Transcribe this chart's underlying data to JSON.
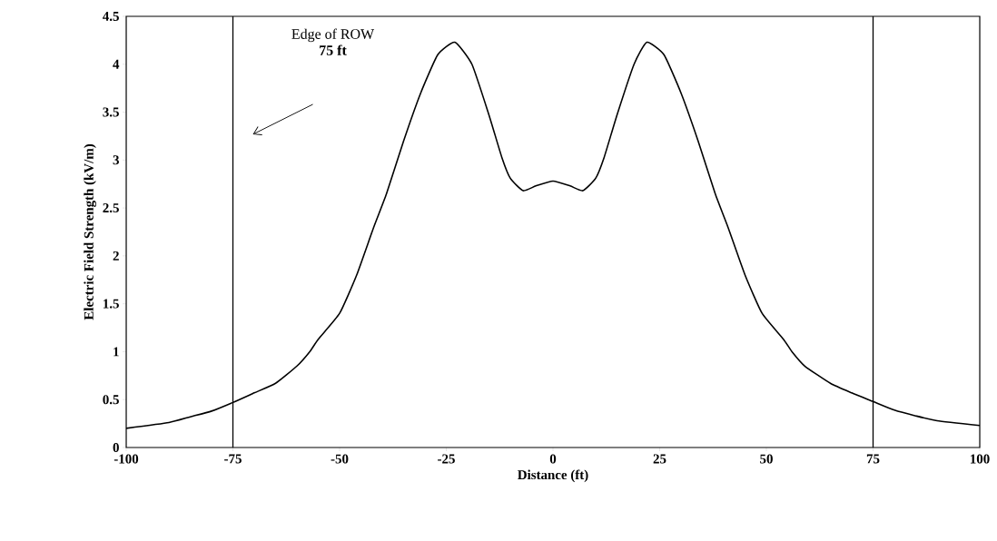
{
  "chart_data": {
    "type": "line",
    "xlabel": "Distance (ft)",
    "ylabel": "Electric Field Strength (kV/m)",
    "x": [
      -100,
      -90,
      -85,
      -80,
      -75,
      -70,
      -65,
      -60,
      -57,
      -55,
      -50,
      -46,
      -42,
      -39,
      -35,
      -31,
      -27,
      -23,
      -19,
      -15,
      -12,
      -10,
      -7,
      -4,
      0,
      4,
      7,
      10,
      12,
      15,
      19,
      22,
      26,
      30,
      34,
      38,
      41,
      45,
      49,
      54,
      56,
      59,
      65,
      70,
      75,
      80,
      85,
      90,
      100
    ],
    "series": [
      {
        "color": "#000000",
        "values": [
          0.2,
          0.26,
          0.32,
          0.38,
          0.47,
          0.57,
          0.67,
          0.85,
          1.0,
          1.13,
          1.4,
          1.8,
          2.3,
          2.65,
          3.2,
          3.7,
          4.1,
          4.23,
          4.0,
          3.47,
          3.03,
          2.81,
          2.68,
          2.73,
          2.78,
          2.73,
          2.68,
          2.81,
          3.03,
          3.47,
          4.0,
          4.23,
          4.1,
          3.7,
          3.2,
          2.65,
          2.3,
          1.8,
          1.4,
          1.13,
          1.0,
          0.85,
          0.67,
          0.57,
          0.48,
          0.39,
          0.33,
          0.28,
          0.23
        ]
      }
    ],
    "xlim": [
      -100,
      100
    ],
    "ylim": [
      0,
      4.5
    ],
    "xticks": [
      -100,
      -75,
      -50,
      -25,
      0,
      25,
      50,
      75,
      100
    ],
    "yticks": [
      0,
      0.5,
      1,
      1.5,
      2,
      2.5,
      3,
      3.5,
      4,
      4.5
    ],
    "ref_lines": [
      {
        "axis": "x",
        "value": -75,
        "color": "#000000"
      },
      {
        "axis": "x",
        "value": 75,
        "color": "#000000"
      }
    ],
    "annotations": [
      "Edge of ROW",
      "75 ft"
    ],
    "grid": false,
    "marker": "none",
    "line_style": "solid"
  }
}
